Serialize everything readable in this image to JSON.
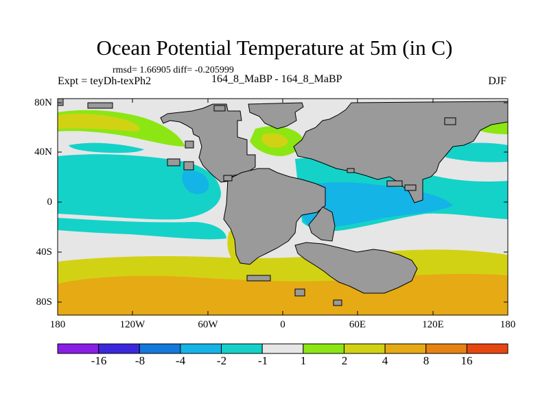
{
  "figure": {
    "title": "Ocean Potential Temperature at 5m (in C)",
    "stats": "rmsd= 1.66905 diff= -0.205999",
    "experiment": "Expt = teyDh-texPh2",
    "subtitle": "164_8_MaBP - 164_8_MaBP",
    "season": "DJF"
  },
  "axes": {
    "lat_labels": [
      "80N",
      "40N",
      "0",
      "40S",
      "80S"
    ],
    "lon_labels": [
      "180",
      "120W",
      "60W",
      "0",
      "60E",
      "120E",
      "180"
    ]
  },
  "colorbar": {
    "labels": [
      "-16",
      "-8",
      "-4",
      "-2",
      "-1",
      "1",
      "2",
      "4",
      "8",
      "16"
    ],
    "colors": [
      "#8a1ee6",
      "#3c28dc",
      "#1478dc",
      "#14b4e6",
      "#14d2c8",
      "#e6e6e6",
      "#8ce614",
      "#d2d214",
      "#e6aa14",
      "#e68214",
      "#e6460f"
    ]
  },
  "palette": {
    "land": "#9a9a9a",
    "gray_ocean": "#e6e6e6",
    "green": "#8ce614",
    "olive": "#d2d214",
    "orange": "#e6aa14",
    "cyan": "#14d2c8",
    "blue": "#14b4e6"
  }
}
